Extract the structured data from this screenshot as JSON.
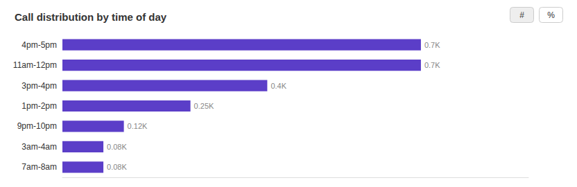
{
  "chart_data": {
    "type": "bar",
    "orientation": "horizontal",
    "title": "Call distribution by time of day",
    "categories": [
      "4pm-5pm",
      "11am-12pm",
      "3pm-4pm",
      "1pm-2pm",
      "9pm-10pm",
      "3am-4am",
      "7am-8am"
    ],
    "values": [
      0.7,
      0.7,
      0.4,
      0.25,
      0.12,
      0.08,
      0.08
    ],
    "value_labels": [
      "0.7K",
      "0.7K",
      "0.4K",
      "0.25K",
      "0.12K",
      "0.08K",
      "0.08K"
    ],
    "data_labels": true,
    "color": "#5b3ec8",
    "xlim": [
      0,
      0.91
    ],
    "tick_labels": "y",
    "grid": false,
    "annotations": [
      "#",
      "%"
    ]
  }
}
